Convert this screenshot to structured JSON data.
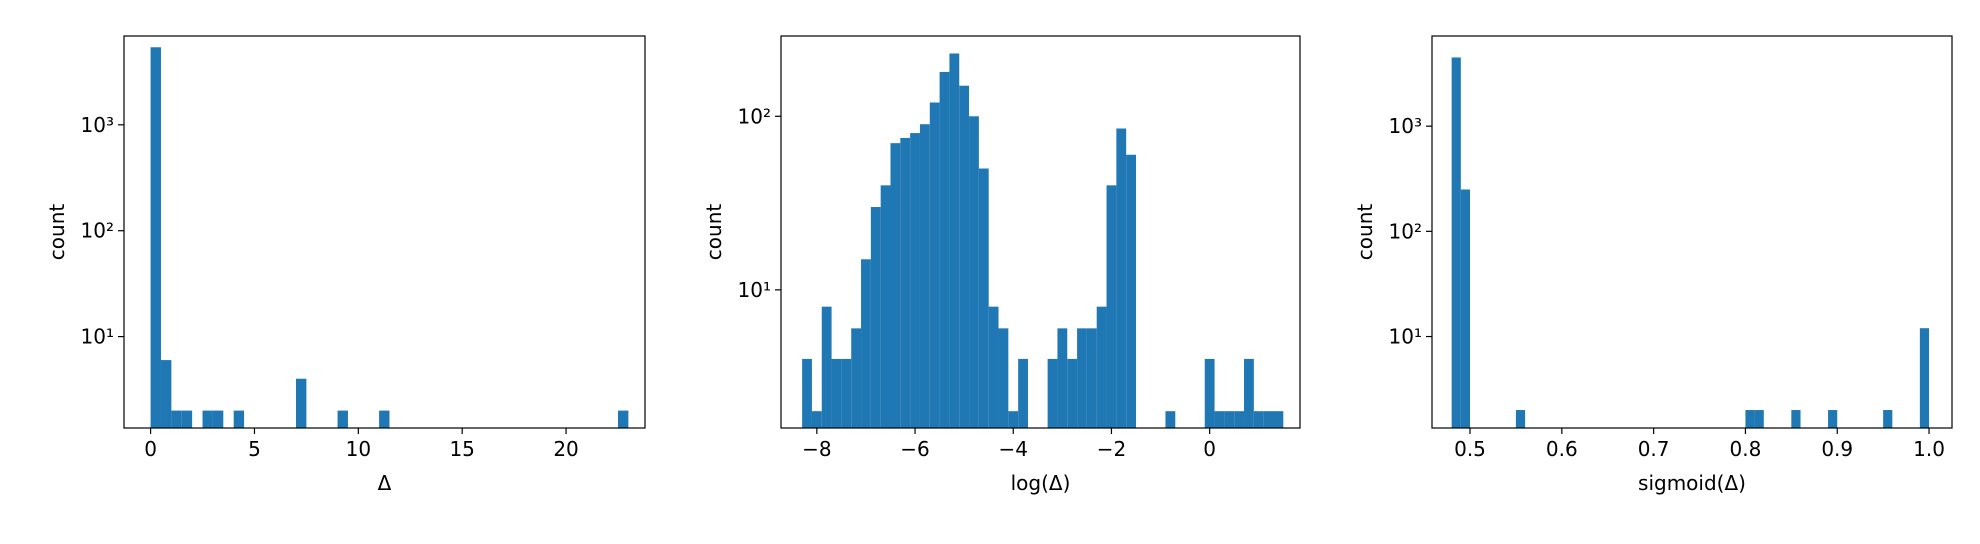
{
  "chart_data": [
    {
      "type": "histogram",
      "xlabel": "Δ",
      "ylabel": "count",
      "color": "#1f77b4",
      "log_y": true,
      "bins": [
        0,
        0.5,
        1,
        1.5,
        2,
        2.5,
        3,
        3.5,
        4,
        4.5,
        5,
        5.5,
        6,
        6.5,
        7,
        7.5,
        8,
        8.5,
        9,
        9.5,
        10,
        10.5,
        11,
        11.5,
        12,
        12.5,
        13,
        13.5,
        14,
        14.5,
        15,
        15.5,
        16,
        16.5,
        17,
        17.5,
        18,
        18.5,
        19,
        19.5,
        20,
        20.5,
        21,
        21.5,
        22,
        22.5,
        23
      ],
      "values": [
        5400,
        6,
        2,
        2,
        0,
        2,
        2,
        0,
        2,
        0,
        0,
        0,
        0,
        0,
        4,
        0,
        0,
        0,
        2,
        0,
        0,
        0,
        2,
        0,
        0,
        0,
        0,
        0,
        0,
        0,
        0,
        0,
        0,
        0,
        0,
        0,
        0,
        0,
        0,
        0,
        0,
        0,
        0,
        0,
        0,
        2
      ],
      "xlim": [
        -1.28,
        23.8
      ],
      "ylim": [
        1.37,
        6900
      ],
      "xticks": [
        0,
        5,
        10,
        15,
        20
      ],
      "yticks": [
        {
          "value": 10,
          "label": "10¹"
        },
        {
          "value": 100,
          "label": "10²"
        },
        {
          "value": 1000,
          "label": "10³"
        }
      ]
    },
    {
      "type": "histogram",
      "xlabel": "log(Δ)",
      "ylabel": "count",
      "color": "#1f77b4",
      "log_y": true,
      "bins": [
        -8.3,
        -8.1,
        -7.9,
        -7.7,
        -7.5,
        -7.3,
        -7.1,
        -6.9,
        -6.7,
        -6.5,
        -6.3,
        -6.1,
        -5.9,
        -5.7,
        -5.5,
        -5.3,
        -5.1,
        -4.9,
        -4.7,
        -4.5,
        -4.3,
        -4.1,
        -3.9,
        -3.7,
        -3.5,
        -3.3,
        -3.1,
        -2.9,
        -2.7,
        -2.5,
        -2.3,
        -2.1,
        -1.9,
        -1.7,
        -1.5,
        -1.3,
        -1.1,
        -0.9,
        -0.7,
        -0.5,
        -0.3,
        -0.1,
        0.1,
        0.3,
        0.5,
        0.7,
        0.9,
        1.1,
        1.3,
        1.5
      ],
      "values": [
        4,
        2,
        8,
        4,
        4,
        6,
        15,
        30,
        40,
        70,
        75,
        80,
        90,
        120,
        180,
        230,
        150,
        100,
        50,
        8,
        6,
        2,
        4,
        0,
        0,
        4,
        6,
        4,
        6,
        6,
        8,
        40,
        85,
        60,
        0,
        0,
        0,
        2,
        0,
        0,
        0,
        4,
        2,
        2,
        2,
        4,
        2,
        2,
        2
      ],
      "xlim": [
        -8.73,
        1.84
      ],
      "ylim": [
        1.6,
        290
      ],
      "xticks": [
        {
          "value": -8,
          "label": "−8"
        },
        {
          "value": -6,
          "label": "−6"
        },
        {
          "value": -4,
          "label": "−4"
        },
        {
          "value": -2,
          "label": "−2"
        },
        0
      ],
      "yticks": [
        {
          "value": 10,
          "label": "10¹"
        },
        {
          "value": 100,
          "label": "10²"
        }
      ]
    },
    {
      "type": "histogram",
      "xlabel": "sigmoid(Δ)",
      "ylabel": "count",
      "color": "#1f77b4",
      "log_y": true,
      "bins": [
        0.48,
        0.49,
        0.5,
        0.51,
        0.52,
        0.53,
        0.54,
        0.55,
        0.56,
        0.57,
        0.58,
        0.59,
        0.6,
        0.61,
        0.62,
        0.63,
        0.64,
        0.65,
        0.66,
        0.67,
        0.68,
        0.69,
        0.7,
        0.71,
        0.72,
        0.73,
        0.74,
        0.75,
        0.76,
        0.77,
        0.78,
        0.79,
        0.8,
        0.81,
        0.82,
        0.83,
        0.84,
        0.85,
        0.86,
        0.87,
        0.88,
        0.89,
        0.9,
        0.91,
        0.92,
        0.93,
        0.94,
        0.95,
        0.96,
        0.97,
        0.98,
        0.99,
        1
      ],
      "values": [
        4500,
        250,
        0,
        0,
        0,
        0,
        0,
        2,
        0,
        0,
        0,
        0,
        0,
        0,
        0,
        0,
        0,
        0,
        0,
        0,
        0,
        0,
        0,
        0,
        0,
        0,
        0,
        0,
        0,
        0,
        0,
        0,
        2,
        2,
        0,
        0,
        0,
        2,
        0,
        0,
        0,
        2,
        0,
        0,
        0,
        0,
        0,
        2,
        0,
        0,
        0,
        12
      ],
      "xlim": [
        0.4586,
        1.025
      ],
      "ylim": [
        1.35,
        7200
      ],
      "xticks": [
        0.5,
        0.6,
        0.7,
        0.8,
        0.9,
        {
          "value": 1,
          "label": "1.0"
        }
      ],
      "yticks": [
        {
          "value": 10,
          "label": "10¹"
        },
        {
          "value": 100,
          "label": "10²"
        },
        {
          "value": 1000,
          "label": "10³"
        }
      ]
    }
  ]
}
